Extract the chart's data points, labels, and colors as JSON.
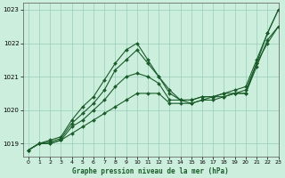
{
  "title": "Graphe pression niveau de la mer (hPa)",
  "background_color": "#cceedd",
  "plot_bg_color": "#cceedd",
  "grid_color": "#99ccbb",
  "line_color": "#1a5c2a",
  "xlim": [
    -0.5,
    23
  ],
  "ylim": [
    1018.6,
    1023.2
  ],
  "yticks": [
    1019,
    1020,
    1021,
    1022,
    1023
  ],
  "xticks": [
    0,
    1,
    2,
    3,
    4,
    5,
    6,
    7,
    8,
    9,
    10,
    11,
    12,
    13,
    14,
    15,
    16,
    17,
    18,
    19,
    20,
    21,
    22,
    23
  ],
  "series": [
    [
      1018.8,
      1019.0,
      1019.0,
      1019.1,
      1019.3,
      1019.5,
      1019.7,
      1019.9,
      1020.1,
      1020.3,
      1020.5,
      1020.5,
      1020.5,
      1020.2,
      1020.2,
      1020.2,
      1020.3,
      1020.3,
      1020.4,
      1020.5,
      1020.5,
      1021.4,
      1022.3,
      1023.0
    ],
    [
      1018.8,
      1019.0,
      1019.0,
      1019.1,
      1019.5,
      1019.7,
      1020.0,
      1020.3,
      1020.7,
      1021.0,
      1021.1,
      1021.0,
      1020.8,
      1020.3,
      1020.3,
      1020.2,
      1020.3,
      1020.4,
      1020.4,
      1020.5,
      1020.5,
      1021.3,
      1022.1,
      1022.5
    ],
    [
      1018.8,
      1019.0,
      1019.05,
      1019.15,
      1019.6,
      1019.9,
      1020.2,
      1020.6,
      1021.2,
      1021.5,
      1021.8,
      1021.4,
      1021.0,
      1020.6,
      1020.3,
      1020.3,
      1020.4,
      1020.4,
      1020.5,
      1020.5,
      1020.6,
      1021.4,
      1022.0,
      1022.5
    ],
    [
      1018.8,
      1019.0,
      1019.1,
      1019.2,
      1019.7,
      1020.1,
      1020.4,
      1020.9,
      1021.4,
      1021.8,
      1022.0,
      1021.5,
      1021.0,
      1020.5,
      1020.3,
      1020.3,
      1020.4,
      1020.4,
      1020.5,
      1020.6,
      1020.7,
      1021.5,
      1022.3,
      1023.0
    ]
  ]
}
